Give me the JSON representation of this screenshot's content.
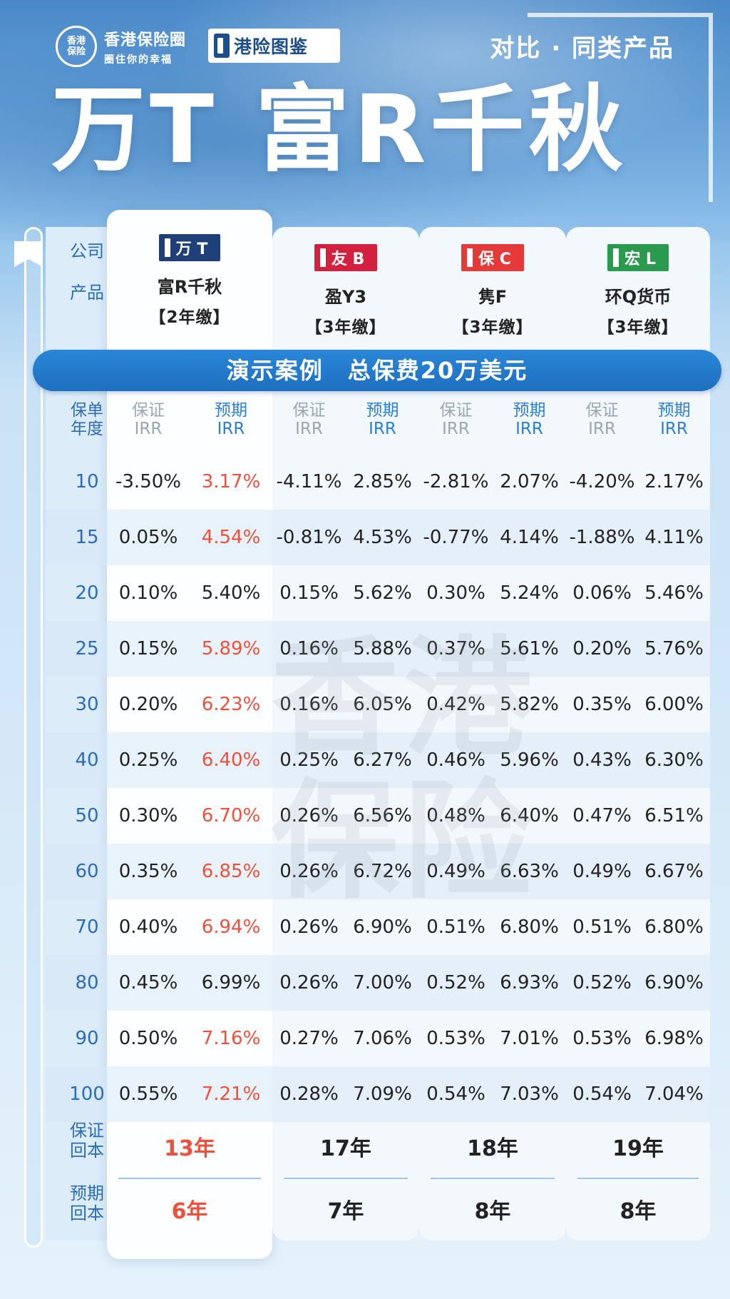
{
  "header": {
    "brand_logo_line1": "香港",
    "brand_logo_line2": "保险",
    "brand_name": "香港保险圈",
    "brand_slogan": "圈住你的幸福",
    "guide_label": "港险图鉴",
    "compare_label": "对比 · 同类产品",
    "title": "万T 富R千秋"
  },
  "labels": {
    "company": "公司",
    "product": "产品",
    "policy_year_1": "保单",
    "policy_year_2": "年度",
    "guaranteed_1": "保证",
    "expected_1": "预期",
    "irr": "IRR",
    "guaranteed_payback_1": "保证",
    "guaranteed_payback_2": "回本",
    "expected_payback_1": "预期",
    "expected_payback_2": "回本"
  },
  "banner": "演示案例　总保费20万美元",
  "watermark": "香港保险",
  "colors": {
    "ft": "#1e3f78",
    "yb": "#d3203f",
    "bc": "#e53a3a",
    "hl": "#2a9a4e",
    "highlight_red": "#f0503a",
    "banner_blue": "#2a86d8"
  },
  "products": [
    {
      "company": "万 T",
      "name": "富R千秋",
      "term": "【2年缴】",
      "guaranteed_payback": "13年",
      "expected_payback": "6年"
    },
    {
      "company": "友 B",
      "name": "盈Y3",
      "term": "【3年缴】",
      "guaranteed_payback": "17年",
      "expected_payback": "7年"
    },
    {
      "company": "保 C",
      "name": "隽F",
      "term": "【3年缴】",
      "guaranteed_payback": "18年",
      "expected_payback": "8年"
    },
    {
      "company": "宏 L",
      "name": "环Q货币",
      "term": "【3年缴】",
      "guaranteed_payback": "19年",
      "expected_payback": "8年"
    }
  ],
  "rows": [
    {
      "year": "10",
      "v": [
        "-3.50%",
        "3.17%",
        "-4.11%",
        "2.85%",
        "-2.81%",
        "2.07%",
        "-4.20%",
        "2.17%"
      ],
      "hl": true
    },
    {
      "year": "15",
      "v": [
        "0.05%",
        "4.54%",
        "-0.81%",
        "4.53%",
        "-0.77%",
        "4.14%",
        "-1.88%",
        "4.11%"
      ],
      "hl": true
    },
    {
      "year": "20",
      "v": [
        "0.10%",
        "5.40%",
        "0.15%",
        "5.62%",
        "0.30%",
        "5.24%",
        "0.06%",
        "5.46%"
      ],
      "hl": false
    },
    {
      "year": "25",
      "v": [
        "0.15%",
        "5.89%",
        "0.16%",
        "5.88%",
        "0.37%",
        "5.61%",
        "0.20%",
        "5.76%"
      ],
      "hl": true
    },
    {
      "year": "30",
      "v": [
        "0.20%",
        "6.23%",
        "0.16%",
        "6.05%",
        "0.42%",
        "5.82%",
        "0.35%",
        "6.00%"
      ],
      "hl": true
    },
    {
      "year": "40",
      "v": [
        "0.25%",
        "6.40%",
        "0.25%",
        "6.27%",
        "0.46%",
        "5.96%",
        "0.43%",
        "6.30%"
      ],
      "hl": true
    },
    {
      "year": "50",
      "v": [
        "0.30%",
        "6.70%",
        "0.26%",
        "6.56%",
        "0.48%",
        "6.40%",
        "0.47%",
        "6.51%"
      ],
      "hl": true
    },
    {
      "year": "60",
      "v": [
        "0.35%",
        "6.85%",
        "0.26%",
        "6.72%",
        "0.49%",
        "6.63%",
        "0.49%",
        "6.67%"
      ],
      "hl": true
    },
    {
      "year": "70",
      "v": [
        "0.40%",
        "6.94%",
        "0.26%",
        "6.90%",
        "0.51%",
        "6.80%",
        "0.51%",
        "6.80%"
      ],
      "hl": true
    },
    {
      "year": "80",
      "v": [
        "0.45%",
        "6.99%",
        "0.26%",
        "7.00%",
        "0.52%",
        "6.93%",
        "0.52%",
        "6.90%"
      ],
      "hl": false
    },
    {
      "year": "90",
      "v": [
        "0.50%",
        "7.16%",
        "0.27%",
        "7.06%",
        "0.53%",
        "7.01%",
        "0.53%",
        "6.98%"
      ],
      "hl": true
    },
    {
      "year": "100",
      "v": [
        "0.55%",
        "7.21%",
        "0.28%",
        "7.09%",
        "0.54%",
        "7.03%",
        "0.54%",
        "7.04%"
      ],
      "hl": true
    }
  ]
}
